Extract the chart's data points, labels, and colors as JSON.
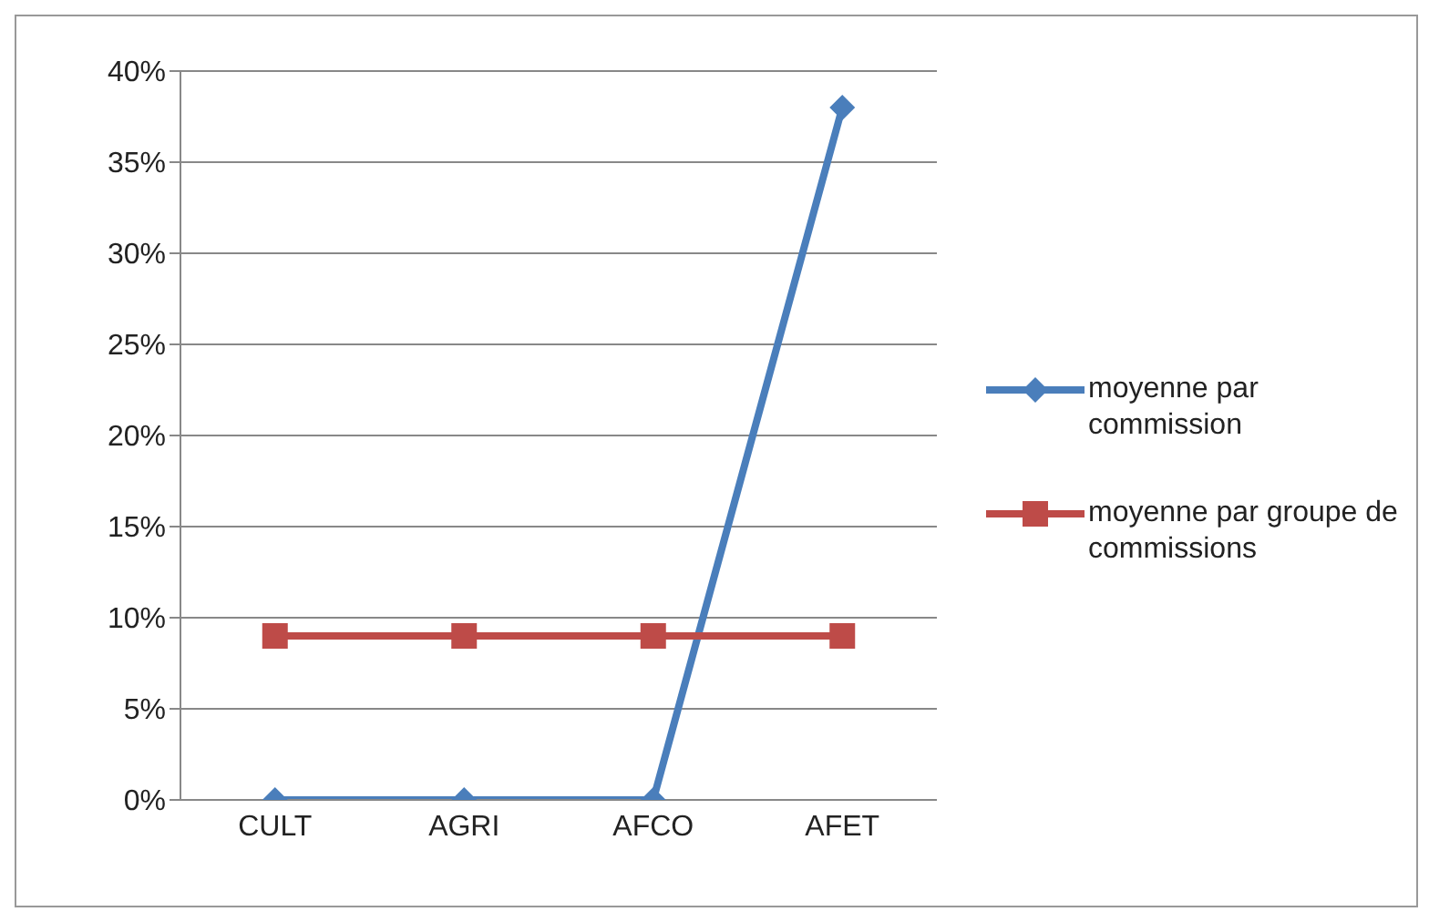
{
  "chart_data": {
    "type": "line",
    "categories": [
      "CULT",
      "AGRI",
      "AFCO",
      "AFET"
    ],
    "series": [
      {
        "name": "moyenne par commission",
        "color": "#4a7ebb",
        "values": [
          0,
          0,
          0,
          38
        ],
        "marker": "diamond"
      },
      {
        "name": "moyenne par groupe de commissions",
        "color": "#be4b48",
        "values": [
          9,
          9,
          9,
          9
        ],
        "marker": "square"
      }
    ],
    "ylim": [
      0,
      40
    ],
    "yticks": [
      {
        "value": 0,
        "label": "0%"
      },
      {
        "value": 5,
        "label": "5%"
      },
      {
        "value": 10,
        "label": "10%"
      },
      {
        "value": 15,
        "label": "15%"
      },
      {
        "value": 20,
        "label": "20%"
      },
      {
        "value": 25,
        "label": "25%"
      },
      {
        "value": 30,
        "label": "30%"
      },
      {
        "value": 35,
        "label": "35%"
      },
      {
        "value": 40,
        "label": "40%"
      }
    ],
    "grid": "y",
    "legend": "right",
    "line_style": "solid"
  }
}
